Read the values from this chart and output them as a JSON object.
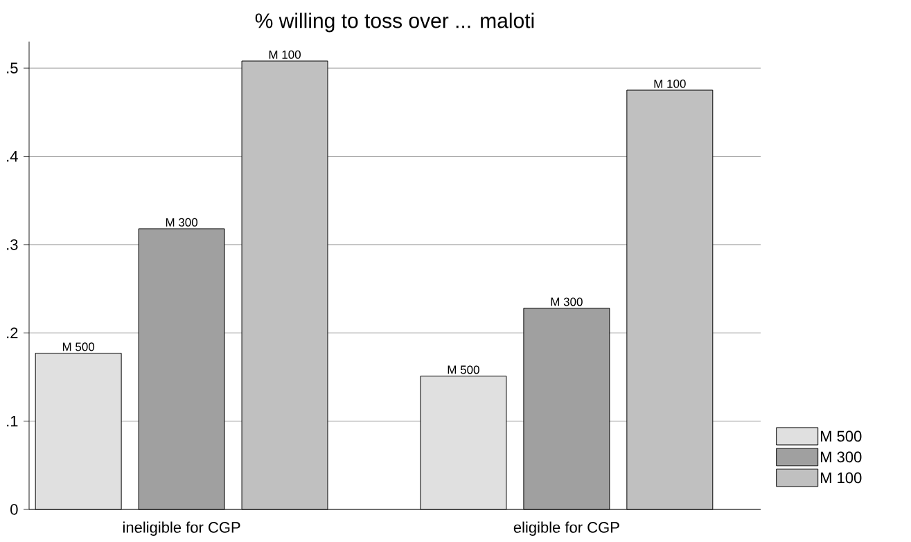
{
  "chart_data": {
    "type": "bar",
    "title": "% willing to toss over ... maloti",
    "categories": [
      "ineligible for CGP",
      "eligible for CGP"
    ],
    "series": [
      {
        "name": "M 500",
        "color": "#e0e0e0",
        "values": [
          0.177,
          0.151
        ],
        "value_labels": [
          "M 500",
          "M 500"
        ]
      },
      {
        "name": "M 300",
        "color": "#a0a0a0",
        "values": [
          0.318,
          0.228
        ],
        "value_labels": [
          "M 300",
          "M 300"
        ]
      },
      {
        "name": "M 100",
        "color": "#c0c0c0",
        "values": [
          0.508,
          0.475
        ],
        "value_labels": [
          "M 100",
          "M 100"
        ]
      }
    ],
    "ylim": [
      0,
      0.53
    ],
    "yticks": [
      0,
      {
        "value": 0.1,
        "label": ".1"
      },
      {
        "value": 0.2,
        "label": ".2"
      },
      {
        "value": 0.3,
        "label": ".3"
      },
      {
        "value": 0.4,
        "label": ".4"
      },
      {
        "value": 0.5,
        "label": ".5"
      }
    ],
    "grid": "y",
    "legend": "right"
  }
}
